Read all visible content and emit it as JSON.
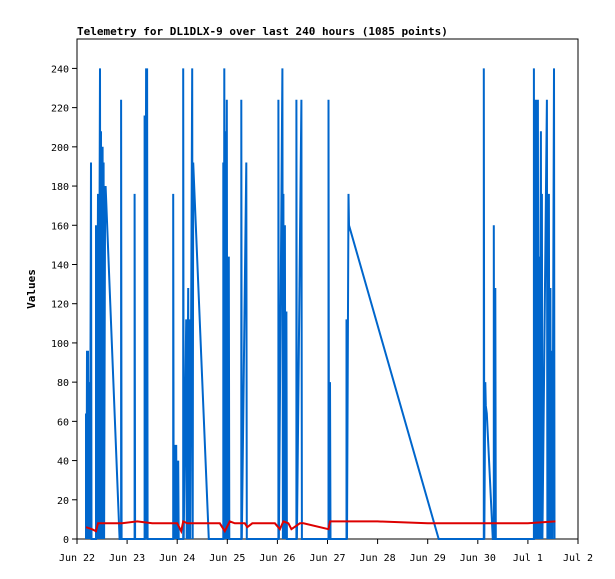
{
  "chart_data": {
    "type": "line",
    "title": "Telemetry for DL1DLX-9 over last 240 hours (1085 points)",
    "xlabel": "",
    "ylabel": "Values",
    "ylim": [
      0,
      255
    ],
    "xlim": [
      "Jun 22",
      "Jul 2"
    ],
    "x_ticks": [
      "Jun 22",
      "Jun 23",
      "Jun 24",
      "Jun 25",
      "Jun 26",
      "Jun 27",
      "Jun 28",
      "Jun 29",
      "Jun 30",
      "Jul 1",
      "Jul 2"
    ],
    "y_ticks": [
      0,
      20,
      40,
      60,
      80,
      100,
      120,
      140,
      160,
      180,
      200,
      220,
      240
    ],
    "grid": false,
    "legend": "none",
    "series": [
      {
        "color": "#0066cc",
        "points": [
          [
            0.18,
            0
          ],
          [
            0.18,
            64
          ],
          [
            0.19,
            0
          ],
          [
            0.2,
            96
          ],
          [
            0.21,
            0
          ],
          [
            0.22,
            96
          ],
          [
            0.23,
            0
          ],
          [
            0.25,
            80
          ],
          [
            0.26,
            0
          ],
          [
            0.28,
            192
          ],
          [
            0.29,
            0
          ],
          [
            0.38,
            0
          ],
          [
            0.38,
            160
          ],
          [
            0.39,
            0
          ],
          [
            0.42,
            176
          ],
          [
            0.43,
            0
          ],
          [
            0.46,
            240
          ],
          [
            0.47,
            0
          ],
          [
            0.48,
            208
          ],
          [
            0.49,
            0
          ],
          [
            0.51,
            200
          ],
          [
            0.52,
            0
          ],
          [
            0.53,
            192
          ],
          [
            0.54,
            0
          ],
          [
            0.56,
            176
          ],
          [
            0.57,
            180
          ],
          [
            0.85,
            0
          ],
          [
            0.88,
            0
          ],
          [
            0.88,
            224
          ],
          [
            0.89,
            0
          ],
          [
            1.15,
            0
          ],
          [
            1.15,
            176
          ],
          [
            1.16,
            0
          ],
          [
            1.35,
            0
          ],
          [
            1.35,
            216
          ],
          [
            1.36,
            0
          ],
          [
            1.38,
            240
          ],
          [
            1.39,
            0
          ],
          [
            1.4,
            240
          ],
          [
            1.41,
            0
          ],
          [
            1.92,
            0
          ],
          [
            1.92,
            176
          ],
          [
            1.93,
            0
          ],
          [
            1.95,
            48
          ],
          [
            1.96,
            0
          ],
          [
            1.98,
            48
          ],
          [
            1.99,
            0
          ],
          [
            2.02,
            40
          ],
          [
            2.03,
            0
          ],
          [
            2.12,
            0
          ],
          [
            2.12,
            240
          ],
          [
            2.13,
            0
          ],
          [
            2.18,
            112
          ],
          [
            2.19,
            0
          ],
          [
            2.22,
            128
          ],
          [
            2.23,
            0
          ],
          [
            2.25,
            112
          ],
          [
            2.26,
            0
          ],
          [
            2.3,
            240
          ],
          [
            2.31,
            0
          ],
          [
            2.32,
            192
          ],
          [
            2.63,
            0
          ],
          [
            2.92,
            0
          ],
          [
            2.92,
            192
          ],
          [
            2.93,
            0
          ],
          [
            2.94,
            240
          ],
          [
            2.95,
            0
          ],
          [
            2.96,
            208
          ],
          [
            2.97,
            0
          ],
          [
            2.99,
            224
          ],
          [
            3.0,
            0
          ],
          [
            3.03,
            144
          ],
          [
            3.04,
            0
          ],
          [
            3.28,
            0
          ],
          [
            3.28,
            224
          ],
          [
            3.29,
            0
          ],
          [
            3.38,
            192
          ],
          [
            3.39,
            0
          ],
          [
            4.02,
            0
          ],
          [
            4.02,
            224
          ],
          [
            4.03,
            0
          ],
          [
            4.1,
            240
          ],
          [
            4.11,
            0
          ],
          [
            4.12,
            176
          ],
          [
            4.13,
            0
          ],
          [
            4.15,
            160
          ],
          [
            4.16,
            0
          ],
          [
            4.18,
            116
          ],
          [
            4.19,
            0
          ],
          [
            4.38,
            0
          ],
          [
            4.38,
            224
          ],
          [
            4.39,
            0
          ],
          [
            4.48,
            224
          ],
          [
            4.49,
            0
          ],
          [
            5.02,
            0
          ],
          [
            5.02,
            224
          ],
          [
            5.03,
            0
          ],
          [
            5.05,
            80
          ],
          [
            5.06,
            0
          ],
          [
            5.38,
            0
          ],
          [
            5.38,
            112
          ],
          [
            5.39,
            0
          ],
          [
            5.42,
            176
          ],
          [
            5.43,
            160
          ],
          [
            7.22,
            0
          ],
          [
            8.12,
            0
          ],
          [
            8.12,
            240
          ],
          [
            8.13,
            0
          ],
          [
            8.15,
            80
          ],
          [
            8.16,
            68
          ],
          [
            8.18,
            64
          ],
          [
            8.3,
            0
          ],
          [
            8.32,
            0
          ],
          [
            8.32,
            160
          ],
          [
            8.33,
            0
          ],
          [
            8.35,
            128
          ],
          [
            8.36,
            0
          ],
          [
            9.12,
            0
          ],
          [
            9.12,
            240
          ],
          [
            9.13,
            0
          ],
          [
            9.16,
            224
          ],
          [
            9.17,
            0
          ],
          [
            9.2,
            224
          ],
          [
            9.21,
            0
          ],
          [
            9.22,
            144
          ],
          [
            9.23,
            0
          ],
          [
            9.26,
            208
          ],
          [
            9.27,
            0
          ],
          [
            9.28,
            176
          ],
          [
            9.29,
            0
          ],
          [
            9.38,
            224
          ],
          [
            9.39,
            0
          ],
          [
            9.42,
            176
          ],
          [
            9.43,
            0
          ],
          [
            9.45,
            128
          ],
          [
            9.46,
            0
          ],
          [
            9.48,
            96
          ],
          [
            9.49,
            0
          ],
          [
            9.52,
            240
          ],
          [
            9.53,
            0
          ]
        ]
      },
      {
        "color": "#dd0000",
        "points": [
          [
            0.18,
            6
          ],
          [
            0.3,
            5
          ],
          [
            0.38,
            4
          ],
          [
            0.42,
            8
          ],
          [
            0.6,
            8
          ],
          [
            0.9,
            8
          ],
          [
            1.2,
            9
          ],
          [
            1.5,
            8
          ],
          [
            2.0,
            8
          ],
          [
            2.08,
            4
          ],
          [
            2.12,
            9
          ],
          [
            2.2,
            8
          ],
          [
            2.85,
            8
          ],
          [
            2.95,
            4
          ],
          [
            3.05,
            9
          ],
          [
            3.15,
            8
          ],
          [
            3.35,
            8
          ],
          [
            3.4,
            6
          ],
          [
            3.5,
            8
          ],
          [
            3.95,
            8
          ],
          [
            4.05,
            5
          ],
          [
            4.12,
            9
          ],
          [
            4.22,
            8
          ],
          [
            4.28,
            5
          ],
          [
            4.45,
            8
          ],
          [
            4.52,
            8
          ],
          [
            5.02,
            5
          ],
          [
            5.05,
            9
          ],
          [
            6.0,
            9
          ],
          [
            7.0,
            8
          ],
          [
            8.0,
            8
          ],
          [
            9.0,
            8
          ],
          [
            9.55,
            9
          ]
        ]
      }
    ]
  }
}
